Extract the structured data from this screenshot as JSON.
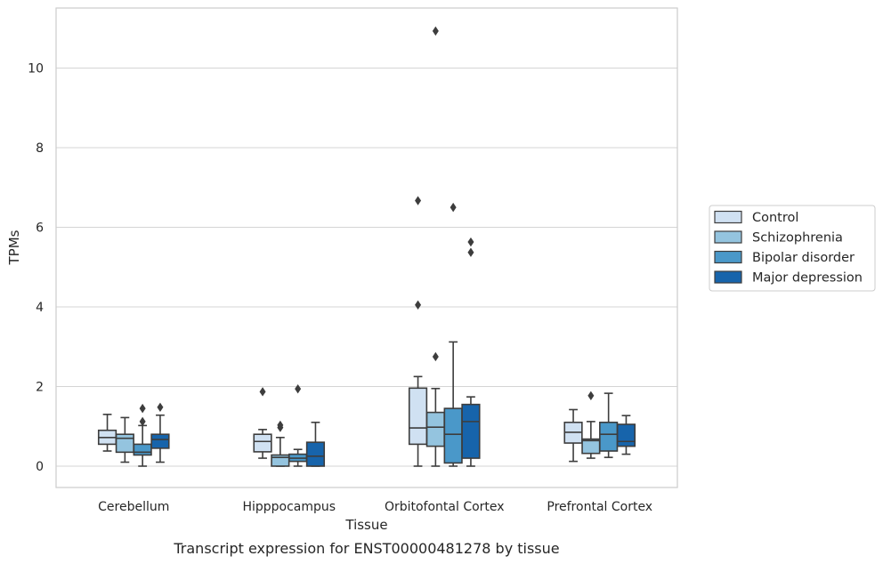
{
  "chart_data": {
    "type": "box",
    "title": "",
    "caption": "Transcript expression for ENST00000481278 by tissue",
    "xlabel": "Tissue",
    "ylabel": "TPMs",
    "ylim": [
      -0.52,
      11.5
    ],
    "yticks": [
      0,
      2,
      4,
      6,
      8,
      10
    ],
    "grid": "horizontal",
    "legend_position": "right",
    "categories": [
      "Cerebellum",
      "Hipppocampus",
      "Orbitofontal Cortex",
      "Prefrontal Cortex"
    ],
    "series": [
      {
        "name": "Control",
        "color": "#d0e1f2",
        "boxes": [
          {
            "whislo": 0.38,
            "q1": 0.55,
            "med": 0.72,
            "q3": 0.9,
            "whishi": 1.3,
            "fliers": []
          },
          {
            "whislo": 0.2,
            "q1": 0.36,
            "med": 0.62,
            "q3": 0.8,
            "whishi": 0.92,
            "fliers": [
              1.87
            ]
          },
          {
            "whislo": 0.0,
            "q1": 0.55,
            "med": 0.96,
            "q3": 1.96,
            "whishi": 2.25,
            "fliers": [
              4.05,
              6.67
            ]
          },
          {
            "whislo": 0.12,
            "q1": 0.58,
            "med": 0.85,
            "q3": 1.1,
            "whishi": 1.42,
            "fliers": []
          }
        ]
      },
      {
        "name": "Schizophrenia",
        "color": "#94c4df",
        "boxes": [
          {
            "whislo": 0.1,
            "q1": 0.35,
            "med": 0.7,
            "q3": 0.8,
            "whishi": 1.22,
            "fliers": []
          },
          {
            "whislo": 0.0,
            "q1": 0.0,
            "med": 0.22,
            "q3": 0.28,
            "whishi": 0.72,
            "fliers": [
              0.97,
              1.03
            ]
          },
          {
            "whislo": 0.0,
            "q1": 0.5,
            "med": 0.98,
            "q3": 1.35,
            "whishi": 1.95,
            "fliers": [
              2.75,
              10.93
            ]
          },
          {
            "whislo": 0.2,
            "q1": 0.32,
            "med": 0.64,
            "q3": 0.68,
            "whishi": 1.12,
            "fliers": [
              1.77
            ]
          }
        ]
      },
      {
        "name": "Bipolar disorder",
        "color": "#4a98c9",
        "boxes": [
          {
            "whislo": 0.0,
            "q1": 0.28,
            "med": 0.35,
            "q3": 0.55,
            "whishi": 1.02,
            "fliers": [
              1.12,
              1.45
            ]
          },
          {
            "whislo": 0.0,
            "q1": 0.12,
            "med": 0.2,
            "q3": 0.3,
            "whishi": 0.42,
            "fliers": [
              1.94
            ]
          },
          {
            "whislo": 0.0,
            "q1": 0.08,
            "med": 0.8,
            "q3": 1.45,
            "whishi": 3.12,
            "fliers": [
              6.5
            ]
          },
          {
            "whislo": 0.22,
            "q1": 0.38,
            "med": 0.8,
            "q3": 1.1,
            "whishi": 1.83,
            "fliers": []
          }
        ]
      },
      {
        "name": "Major depression",
        "color": "#1764ab",
        "boxes": [
          {
            "whislo": 0.1,
            "q1": 0.45,
            "med": 0.67,
            "q3": 0.8,
            "whishi": 1.28,
            "fliers": [
              1.48
            ]
          },
          {
            "whislo": 0.0,
            "q1": 0.0,
            "med": 0.25,
            "q3": 0.6,
            "whishi": 1.1,
            "fliers": []
          },
          {
            "whislo": 0.0,
            "q1": 0.2,
            "med": 1.12,
            "q3": 1.55,
            "whishi": 1.74,
            "fliers": [
              5.37,
              5.63
            ]
          },
          {
            "whislo": 0.3,
            "q1": 0.5,
            "med": 0.62,
            "q3": 1.05,
            "whishi": 1.27,
            "fliers": []
          }
        ]
      }
    ]
  }
}
